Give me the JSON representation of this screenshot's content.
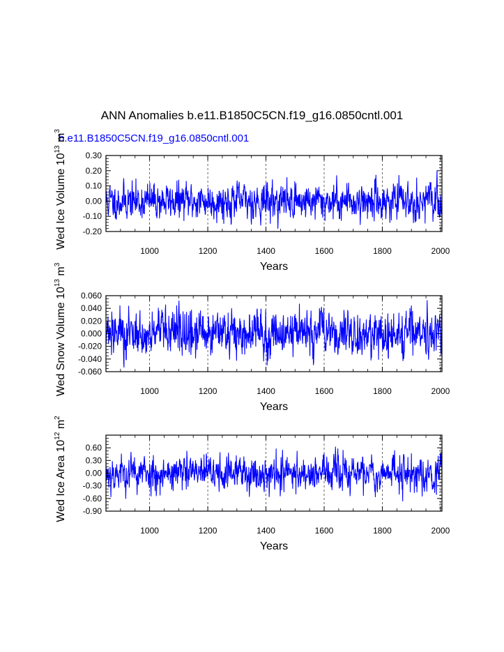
{
  "title": "ANN Anomalies b.e11.B1850C5CN.f19_g16.0850cntl.001",
  "case_label": "b.e11.B1850C5CN.f19_g16.0850cntl.001",
  "line_color": "#0000ff",
  "chart_data": [
    {
      "type": "line",
      "name": "Wed Ice Volume",
      "ylabel_main": "Wed Ice Volume 10",
      "ylabel_exp": "13",
      "ylabel_unit": " m",
      "ylabel_unit_exp": "3",
      "xlabel": "Years",
      "xlim": [
        850,
        2005
      ],
      "ylim": [
        -0.2,
        0.3
      ],
      "yticks": [
        -0.2,
        -0.1,
        0.0,
        0.1,
        0.2,
        0.3
      ],
      "ytick_labels": [
        "-0.20",
        "-0.10",
        "0.00",
        "0.10",
        "0.20",
        "0.30"
      ],
      "xticks": [
        1000,
        1200,
        1400,
        1600,
        1800,
        2000
      ],
      "xtick_labels": [
        "1000",
        "1200",
        "1400",
        "1600",
        "1800",
        "2000"
      ],
      "minor_yticks": 4,
      "amplitude": 0.055,
      "min_value": -0.18,
      "max_value": 0.2,
      "seed": 11
    },
    {
      "type": "line",
      "name": "Wed Snow Volume",
      "ylabel_main": "Wed Snow Volume 10",
      "ylabel_exp": "13",
      "ylabel_unit": " m",
      "ylabel_unit_exp": "3",
      "xlabel": "Years",
      "xlim": [
        850,
        2005
      ],
      "ylim": [
        -0.06,
        0.06
      ],
      "yticks": [
        -0.06,
        -0.04,
        -0.02,
        0.0,
        0.02,
        0.04,
        0.06
      ],
      "ytick_labels": [
        "-0.060",
        "-0.040",
        "-0.020",
        "0.000",
        "0.020",
        "0.040",
        "0.060"
      ],
      "xticks": [
        1000,
        1200,
        1400,
        1600,
        1800,
        2000
      ],
      "xtick_labels": [
        "1000",
        "1200",
        "1400",
        "1600",
        "1800",
        "2000"
      ],
      "minor_yticks": 3,
      "amplitude": 0.017,
      "min_value": -0.054,
      "max_value": 0.062,
      "seed": 27
    },
    {
      "type": "line",
      "name": "Wed Ice Area",
      "ylabel_main": "Wed Ice Area 10",
      "ylabel_exp": "12",
      "ylabel_unit": " m",
      "ylabel_unit_exp": "2",
      "xlabel": "Years",
      "xlim": [
        850,
        2005
      ],
      "ylim": [
        -0.9,
        0.9
      ],
      "yticks": [
        -0.9,
        -0.6,
        -0.3,
        0.0,
        0.3,
        0.6
      ],
      "ytick_labels": [
        "-0.90",
        "-0.60",
        "-0.30",
        "0.00",
        "0.30",
        "0.60"
      ],
      "xticks": [
        1000,
        1200,
        1400,
        1600,
        1800,
        2000
      ],
      "xtick_labels": [
        "1000",
        "1200",
        "1400",
        "1600",
        "1800",
        "2000"
      ],
      "minor_yticks": 3,
      "amplitude": 0.2,
      "min_value": -0.66,
      "max_value": 0.62,
      "seed": 53
    }
  ]
}
